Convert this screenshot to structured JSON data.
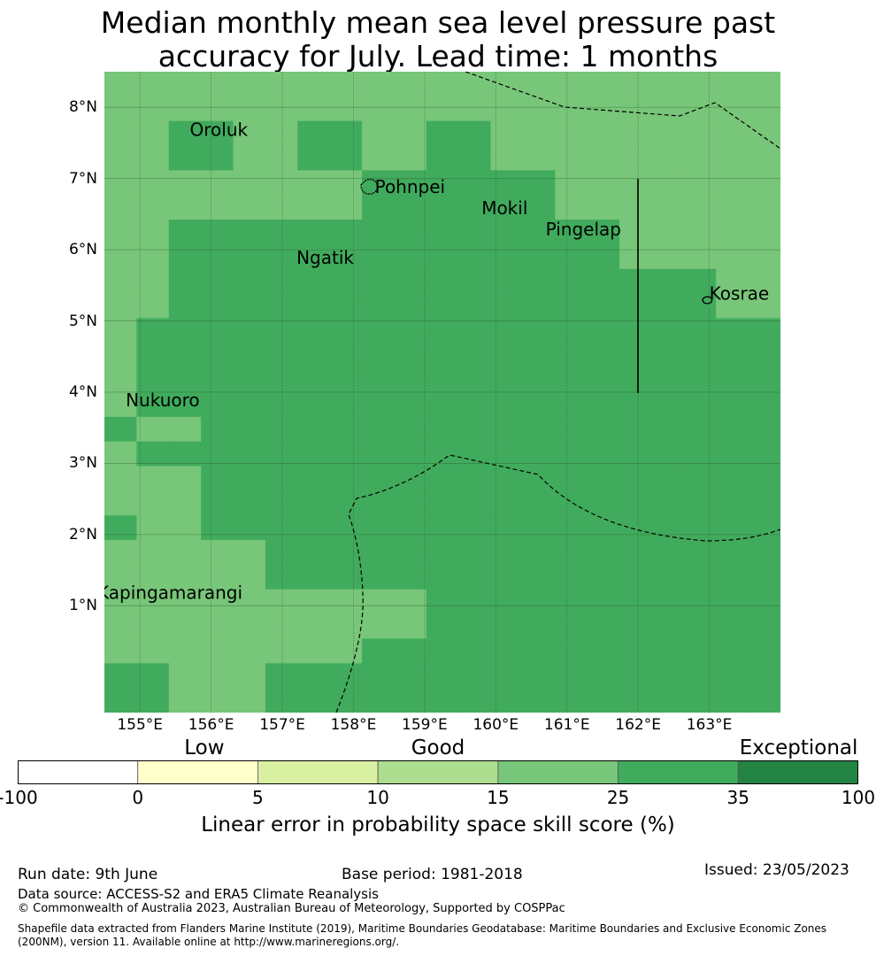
{
  "title_line1": "Median monthly mean sea level pressure past",
  "title_line2": "accuracy for July. Lead time: 1 months",
  "map": {
    "lon_min": 154.5,
    "lon_max": 164.0,
    "lat_min": -0.5,
    "lat_max": 8.5,
    "grid_step_deg": 0.833,
    "lat_ticks": [
      {
        "value": 1,
        "label": "1°N"
      },
      {
        "value": 2,
        "label": "2°N"
      },
      {
        "value": 3,
        "label": "3°N"
      },
      {
        "value": 4,
        "label": "4°N"
      },
      {
        "value": 5,
        "label": "5°N"
      },
      {
        "value": 6,
        "label": "6°N"
      },
      {
        "value": 7,
        "label": "7°N"
      },
      {
        "value": 8,
        "label": "8°N"
      }
    ],
    "lon_ticks": [
      {
        "value": 155,
        "label": "155°E"
      },
      {
        "value": 156,
        "label": "156°E"
      },
      {
        "value": 157,
        "label": "157°E"
      },
      {
        "value": 158,
        "label": "158°E"
      },
      {
        "value": 159,
        "label": "159°E"
      },
      {
        "value": 160,
        "label": "160°E"
      },
      {
        "value": 161,
        "label": "161°E"
      },
      {
        "value": 162,
        "label": "162°E"
      },
      {
        "value": 163,
        "label": "163°E"
      }
    ],
    "skill_category_colors": {
      "0": "#ffffff",
      "1": "#ffffcc",
      "2": "#d9f0a3",
      "3": "#addd8e",
      "4": "#78c679",
      "5": "#41ab5d",
      "6": "#238443"
    },
    "skill_grid_note": "rows from north to south, columns from west to east, value = colorbar category index",
    "skill_grid": [
      [
        4,
        4,
        4,
        4,
        4,
        4,
        4,
        4,
        4,
        4,
        4,
        4,
        4,
        4,
        4,
        4,
        4,
        4,
        4,
        4,
        4
      ],
      [
        4,
        4,
        4,
        4,
        4,
        4,
        4,
        4,
        4,
        4,
        4,
        4,
        4,
        4,
        4,
        4,
        4,
        4,
        4,
        4,
        4
      ],
      [
        4,
        4,
        5,
        5,
        4,
        4,
        5,
        5,
        4,
        4,
        5,
        5,
        4,
        4,
        4,
        4,
        4,
        4,
        4,
        4,
        4
      ],
      [
        4,
        4,
        5,
        5,
        4,
        4,
        5,
        5,
        4,
        4,
        5,
        5,
        4,
        4,
        4,
        4,
        4,
        4,
        4,
        4,
        4
      ],
      [
        4,
        4,
        4,
        4,
        4,
        4,
        4,
        4,
        5,
        5,
        5,
        5,
        5,
        5,
        4,
        4,
        4,
        4,
        4,
        4,
        4
      ],
      [
        4,
        4,
        4,
        4,
        4,
        4,
        4,
        4,
        5,
        5,
        5,
        5,
        5,
        5,
        4,
        4,
        4,
        4,
        4,
        4,
        4
      ],
      [
        4,
        4,
        5,
        5,
        5,
        5,
        5,
        5,
        5,
        5,
        5,
        5,
        5,
        5,
        5,
        5,
        4,
        4,
        4,
        4,
        4
      ],
      [
        4,
        4,
        5,
        5,
        5,
        5,
        5,
        5,
        5,
        5,
        5,
        5,
        5,
        5,
        5,
        5,
        4,
        4,
        4,
        4,
        4
      ],
      [
        4,
        4,
        5,
        5,
        5,
        5,
        5,
        5,
        5,
        5,
        5,
        5,
        5,
        5,
        5,
        5,
        5,
        5,
        5,
        4,
        4
      ],
      [
        4,
        4,
        5,
        5,
        5,
        5,
        5,
        5,
        5,
        5,
        5,
        5,
        5,
        5,
        5,
        5,
        5,
        5,
        5,
        4,
        4
      ],
      [
        4,
        5,
        5,
        5,
        5,
        5,
        5,
        5,
        5,
        5,
        5,
        5,
        5,
        5,
        5,
        5,
        5,
        5,
        5,
        5,
        5
      ],
      [
        4,
        5,
        5,
        5,
        5,
        5,
        5,
        5,
        5,
        5,
        5,
        5,
        5,
        5,
        5,
        5,
        5,
        5,
        5,
        5,
        5
      ],
      [
        4,
        5,
        5,
        5,
        5,
        5,
        5,
        5,
        5,
        5,
        5,
        5,
        5,
        5,
        5,
        5,
        5,
        5,
        5,
        5,
        5
      ],
      [
        4,
        5,
        5,
        5,
        5,
        5,
        5,
        5,
        5,
        5,
        5,
        5,
        5,
        5,
        5,
        5,
        5,
        5,
        5,
        5,
        5
      ],
      [
        5,
        4,
        4,
        5,
        5,
        5,
        5,
        5,
        5,
        5,
        5,
        5,
        5,
        5,
        5,
        5,
        5,
        5,
        5,
        5,
        5
      ],
      [
        4,
        5,
        5,
        5,
        5,
        5,
        5,
        5,
        5,
        5,
        5,
        5,
        5,
        5,
        5,
        5,
        5,
        5,
        5,
        5,
        5
      ],
      [
        4,
        4,
        4,
        5,
        5,
        5,
        5,
        5,
        5,
        5,
        5,
        5,
        5,
        5,
        5,
        5,
        5,
        5,
        5,
        5,
        5
      ],
      [
        4,
        4,
        4,
        5,
        5,
        5,
        5,
        5,
        5,
        5,
        5,
        5,
        5,
        5,
        5,
        5,
        5,
        5,
        5,
        5,
        5
      ],
      [
        5,
        4,
        4,
        5,
        5,
        5,
        5,
        5,
        5,
        5,
        5,
        5,
        5,
        5,
        5,
        5,
        5,
        5,
        5,
        5,
        5
      ],
      [
        4,
        4,
        4,
        4,
        4,
        5,
        5,
        5,
        5,
        5,
        5,
        5,
        5,
        5,
        5,
        5,
        5,
        5,
        5,
        5,
        5
      ],
      [
        4,
        4,
        4,
        4,
        4,
        5,
        5,
        5,
        5,
        5,
        5,
        5,
        5,
        5,
        5,
        5,
        5,
        5,
        5,
        5,
        5
      ],
      [
        4,
        4,
        4,
        4,
        4,
        4,
        4,
        4,
        4,
        4,
        5,
        5,
        5,
        5,
        5,
        5,
        5,
        5,
        5,
        5,
        5
      ],
      [
        4,
        4,
        4,
        4,
        4,
        4,
        4,
        4,
        4,
        4,
        5,
        5,
        5,
        5,
        5,
        5,
        5,
        5,
        5,
        5,
        5
      ],
      [
        4,
        4,
        4,
        4,
        4,
        4,
        4,
        4,
        5,
        5,
        5,
        5,
        5,
        5,
        5,
        5,
        5,
        5,
        5,
        5,
        5
      ],
      [
        5,
        5,
        4,
        4,
        4,
        5,
        5,
        5,
        5,
        5,
        5,
        5,
        5,
        5,
        5,
        5,
        5,
        5,
        5,
        5,
        5
      ],
      [
        5,
        5,
        4,
        4,
        4,
        5,
        5,
        5,
        5,
        5,
        5,
        5,
        5,
        5,
        5,
        5,
        5,
        5,
        5,
        5,
        5
      ]
    ],
    "places": [
      {
        "name": "Oroluk",
        "lon": 155.7,
        "lat": 7.6
      },
      {
        "name": "Pohnpei",
        "lon": 158.3,
        "lat": 6.8
      },
      {
        "name": "Mokil",
        "lon": 159.8,
        "lat": 6.5
      },
      {
        "name": "Pingelap",
        "lon": 160.7,
        "lat": 6.2
      },
      {
        "name": "Ngatik",
        "lon": 157.2,
        "lat": 5.8
      },
      {
        "name": "Kosrae",
        "lon": 163.0,
        "lat": 5.3
      },
      {
        "name": "Nukuoro",
        "lon": 154.8,
        "lat": 3.8
      },
      {
        "name": "Kapingamarangi",
        "lon": 154.4,
        "lat": 1.1
      }
    ]
  },
  "colorbar": {
    "categories": [
      {
        "label": "Low",
        "at": 0.222
      },
      {
        "label": "Good",
        "at": 0.5
      },
      {
        "label": "Exceptional",
        "at": 0.929
      }
    ],
    "bins": [
      {
        "from": "-100",
        "to": "0",
        "color": "#ffffff"
      },
      {
        "from": "0",
        "to": "5",
        "color": "#ffffcc"
      },
      {
        "from": "5",
        "to": "10",
        "color": "#d9f0a3"
      },
      {
        "from": "10",
        "to": "15",
        "color": "#addd8e"
      },
      {
        "from": "15",
        "to": "25",
        "color": "#78c679"
      },
      {
        "from": "25",
        "to": "35",
        "color": "#41ab5d"
      },
      {
        "from": "35",
        "to": "100",
        "color": "#238443"
      }
    ],
    "tick_labels": [
      "-100",
      "0",
      "5",
      "10",
      "15",
      "25",
      "35",
      "100"
    ],
    "title": "Linear error in probability space skill score (%)"
  },
  "footer": {
    "run_date": "Run date: 9th June",
    "base_period": "Base period: 1981-2018",
    "issued": "Issued: 23/05/2023",
    "data_source": "Data source: ACCESS-S2 and ERA5 Climate Reanalysis",
    "copyright": "© Commonwealth of Australia 2023, Australian Bureau of Meteorology, Supported by COSPPac",
    "shapefile": "Shapefile data extracted from Flanders Marine Institute (2019), Maritime Boundaries Geodatabase: Maritime Boundaries and Exclusive Economic Zones (200NM), version 11. Available online at http://www.marineregions.org/."
  }
}
